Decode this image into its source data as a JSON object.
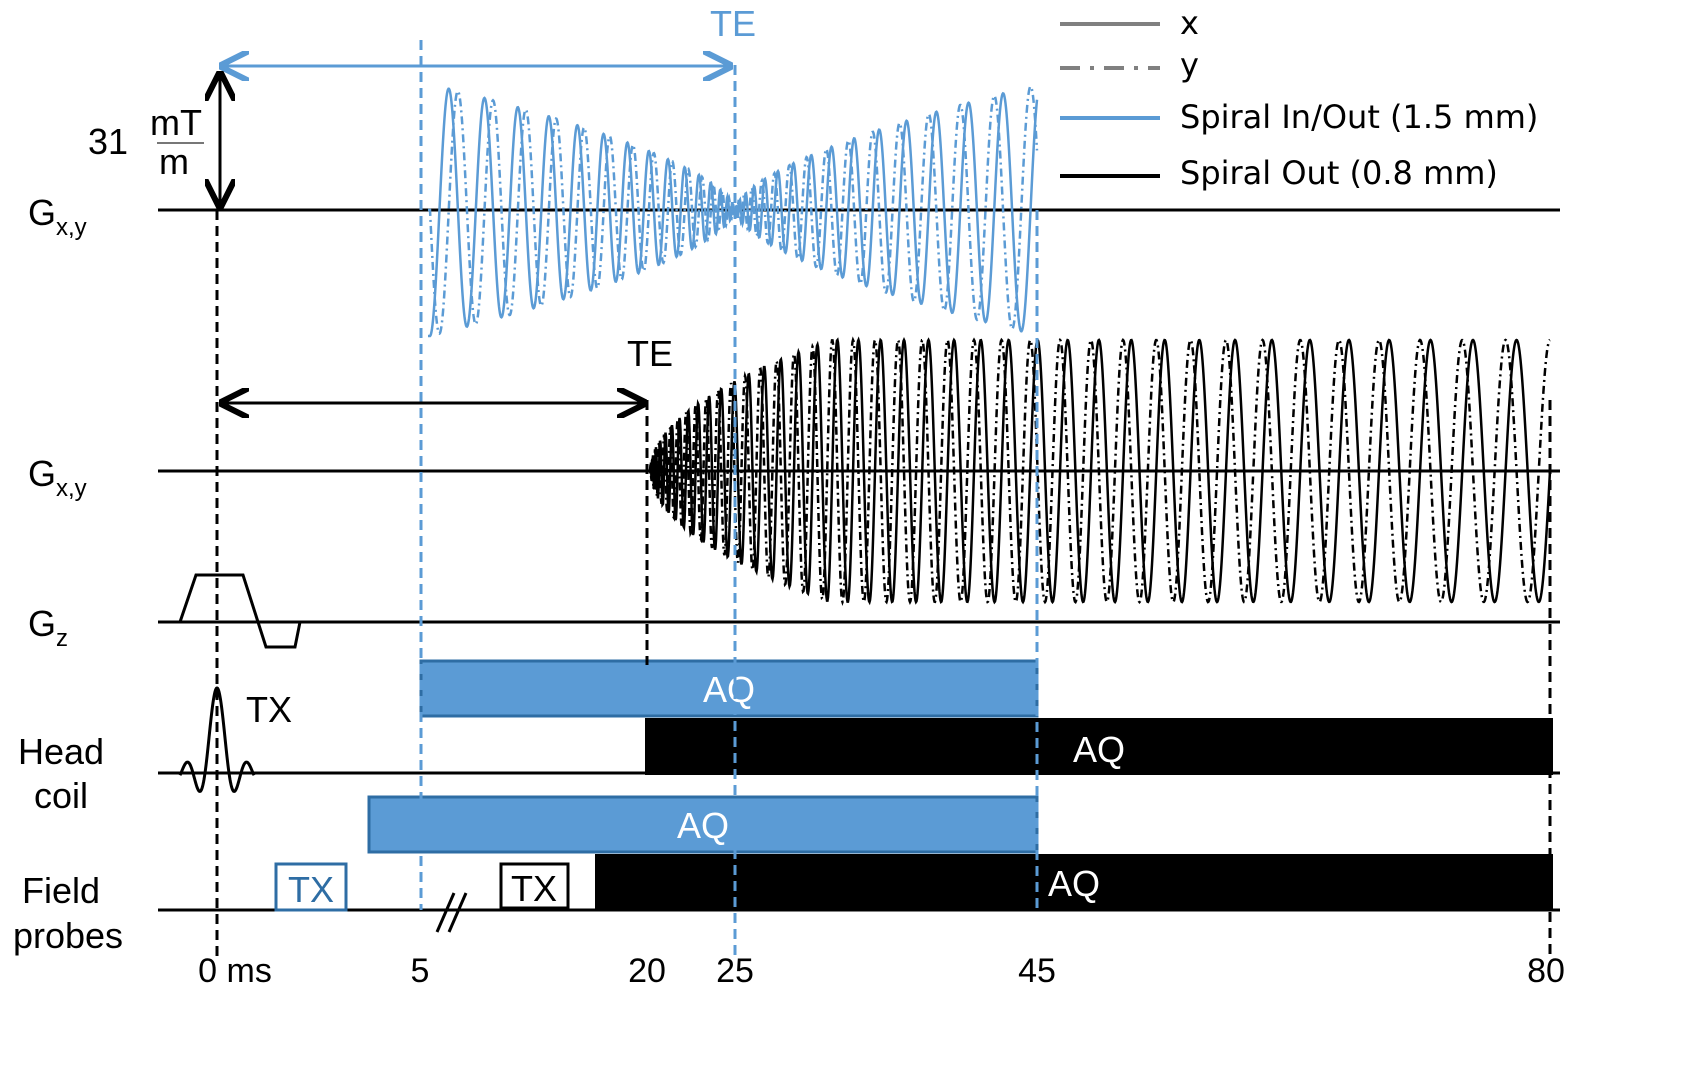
{
  "colors": {
    "blue": "#5b9bd5",
    "blue_dark": "#2e6da4",
    "black": "#000000",
    "gray": "#808080"
  },
  "legend": {
    "x": "x",
    "y": "y",
    "spiral_inout": "Spiral In/Out (1.5 mm)",
    "spiral_out": "Spiral Out (0.8 mm)"
  },
  "labels": {
    "te": "TE",
    "amplitude_value": "31",
    "amplitude_unit_num": "mT",
    "amplitude_unit_den": "m",
    "gxy_main": "G",
    "gxy_sub": "x,y",
    "gz_main": "G",
    "gz_sub": "z",
    "head": "Head",
    "coil": "coil",
    "field": "Field",
    "probes": "probes",
    "tx": "TX",
    "aq": "AQ"
  },
  "time_axis": {
    "ticks": [
      "0 ms",
      "5",
      "20",
      "25",
      "45",
      "80"
    ],
    "tick_values_ms": [
      0,
      5,
      20,
      25,
      45,
      80
    ],
    "break_between_ms": [
      5,
      20
    ]
  },
  "sequences": {
    "spiral_inout": {
      "te_ms": 25,
      "acq_start_ms": 5,
      "acq_end_ms": 45,
      "max_gradient_mT_per_m": 31
    },
    "spiral_out": {
      "te_ms": 20,
      "acq_start_ms": 20,
      "acq_end_ms": 80
    }
  }
}
